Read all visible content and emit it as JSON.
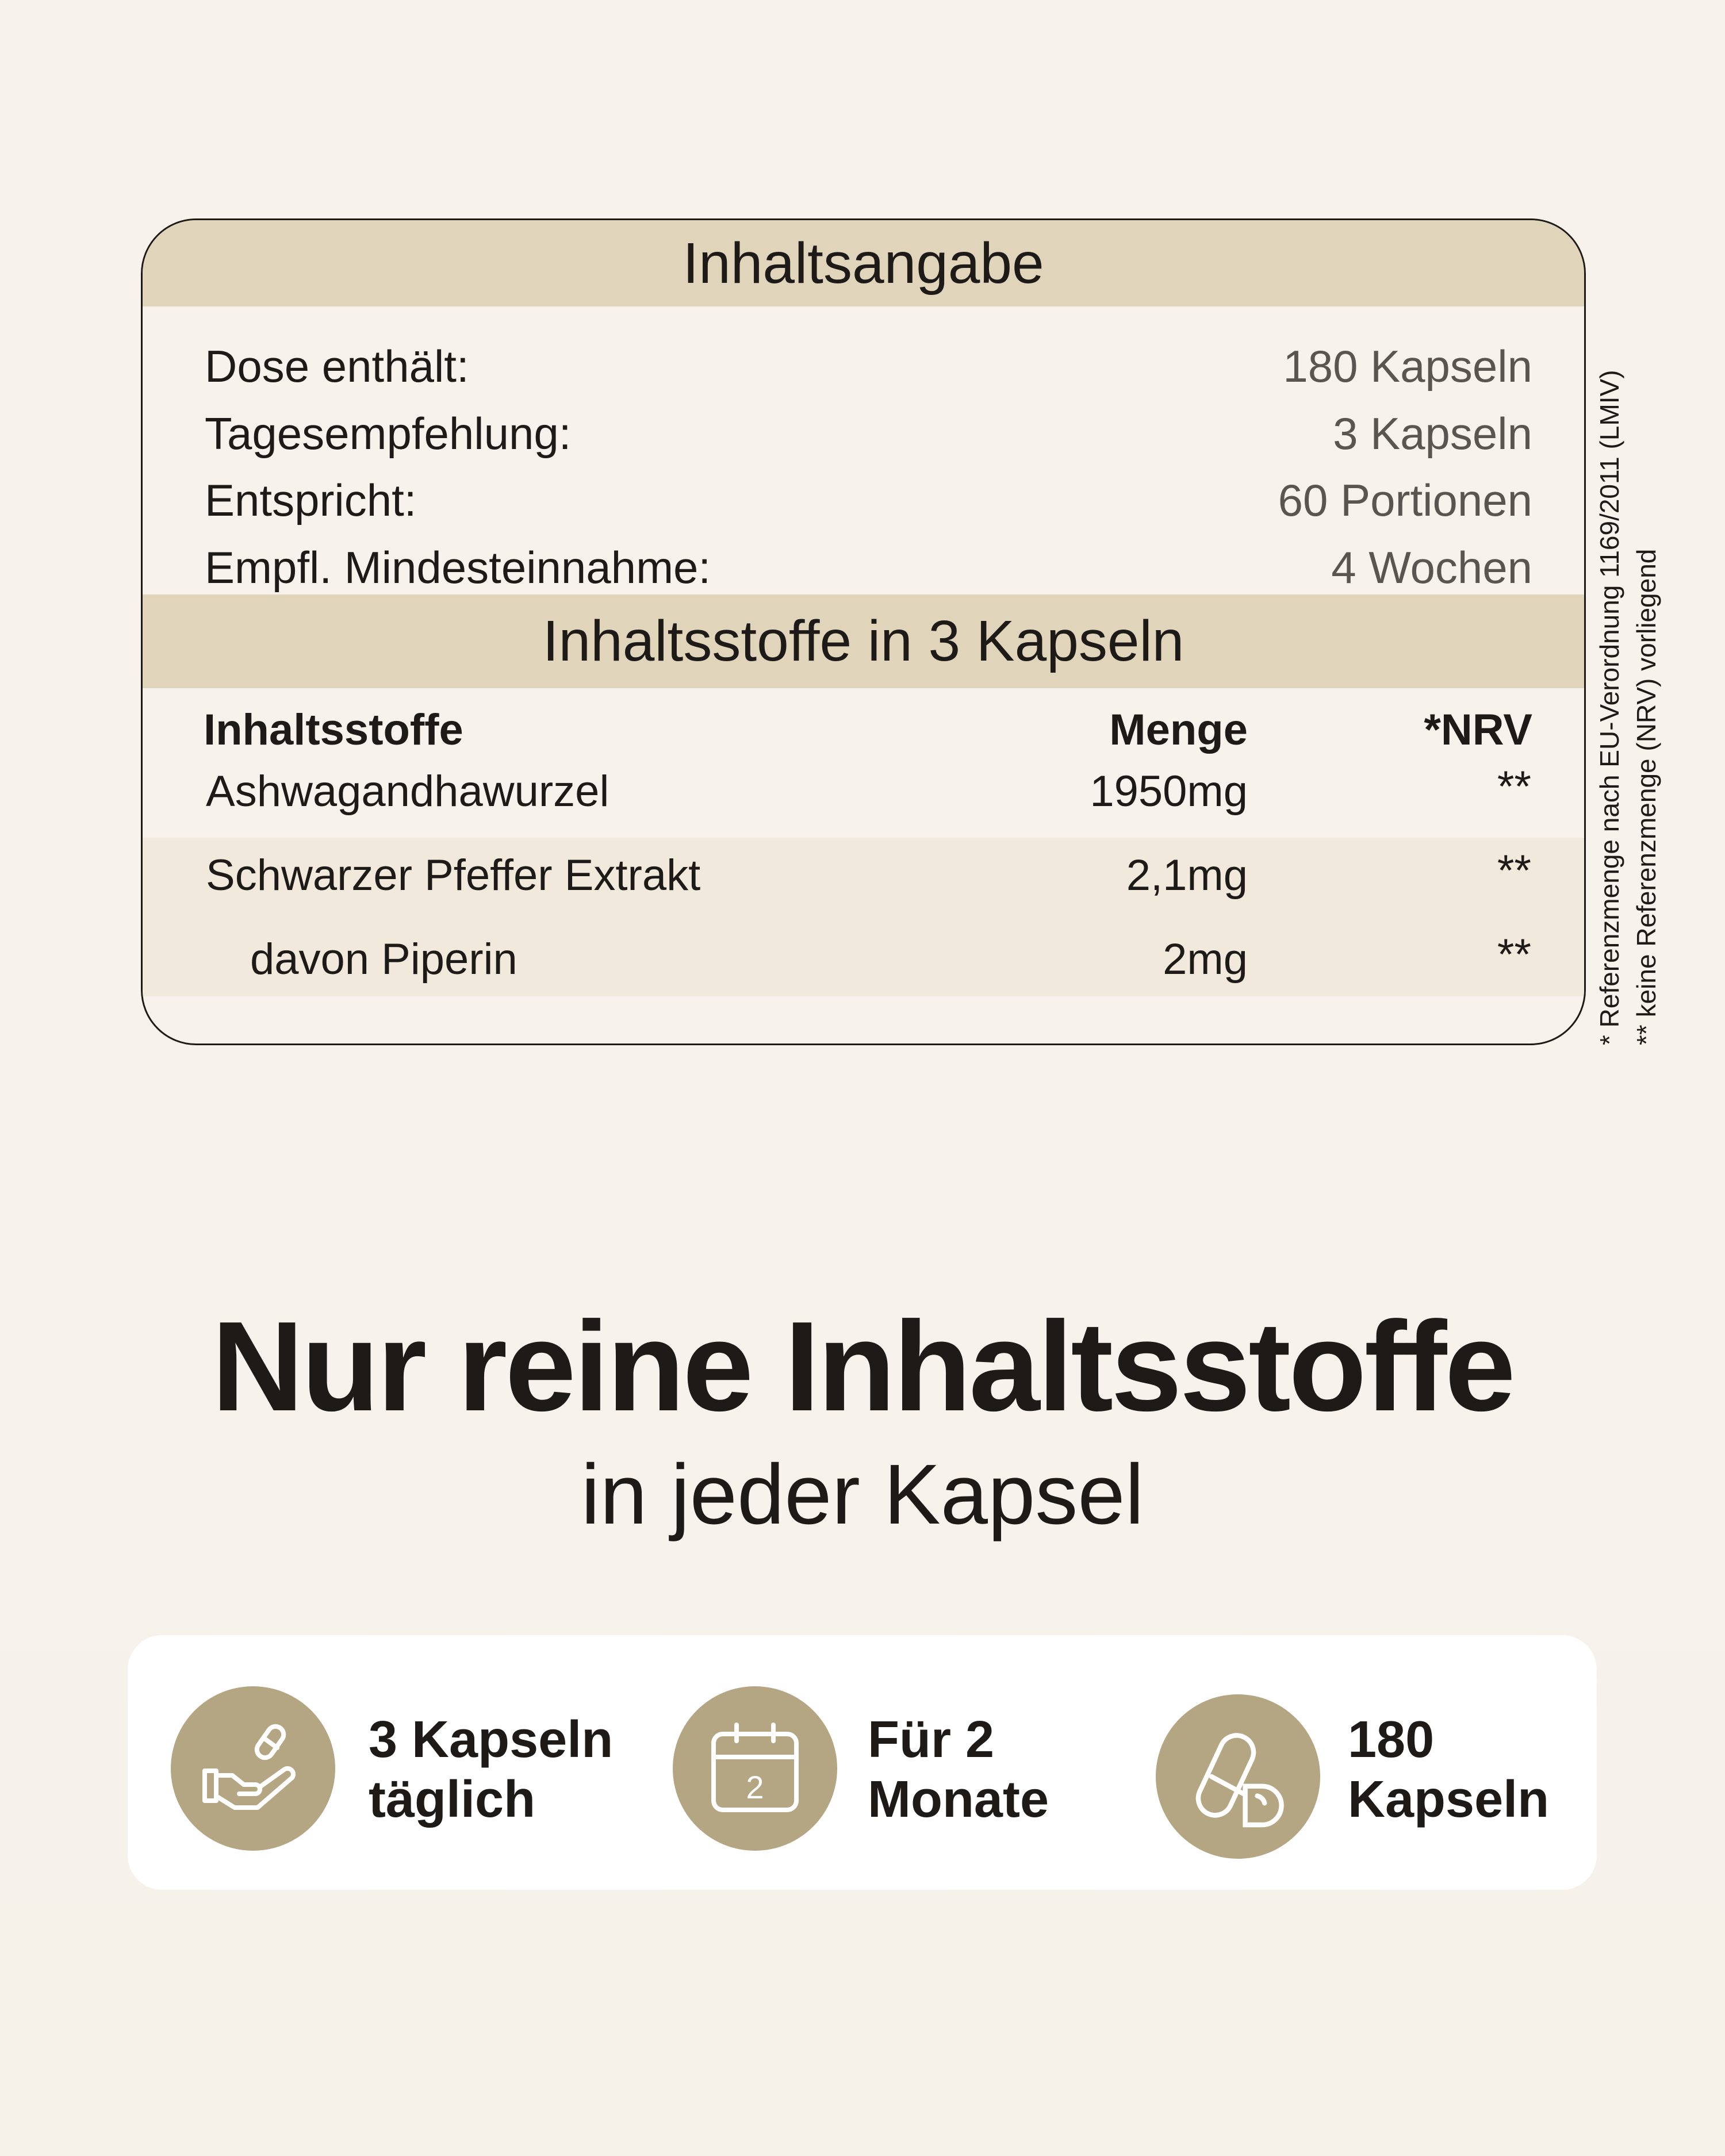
{
  "summary": {
    "title": "Inhaltsangabe",
    "rows": [
      {
        "label": "Dose enthält:",
        "value": "180 Kapseln"
      },
      {
        "label": "Tagesempfehlung:",
        "value": "3 Kapseln"
      },
      {
        "label": "Entspricht:",
        "value": "60 Portionen"
      },
      {
        "label": "Empfl. Mindesteinnahme:",
        "value": "4 Wochen"
      }
    ]
  },
  "ingredients": {
    "title": "Inhaltsstoffe in 3 Kapseln",
    "headers": [
      "Inhaltsstoffe",
      "Menge",
      "*NRV"
    ],
    "rows": [
      [
        "Ashwagandhawurzel",
        "1950mg",
        "**"
      ],
      [
        "Schwarzer Pfeffer Extrakt",
        "2,1mg",
        "**"
      ],
      [
        "davon Piperin",
        "2mg",
        "**"
      ]
    ]
  },
  "footnotes": [
    "* Referenzmenge nach EU-Verordnung 1169/2011 (LMIV)",
    "** keine Referenzmenge (NRV) vorliegend"
  ],
  "headline": "Nur reine Inhaltsstoffe",
  "subline": "in jeder Kapsel",
  "features": [
    {
      "icon": "hand-capsule-icon",
      "line1": "3 Kapseln",
      "line2": "täglich"
    },
    {
      "icon": "calendar-icon",
      "line1": "Für 2",
      "line2": "Monate",
      "calendar_number": "2"
    },
    {
      "icon": "capsules-icon",
      "line1": "180",
      "line2": "Kapseln"
    }
  ],
  "colors": {
    "band": "#e0d5bb",
    "shade": "#f0e9dc",
    "icon_circle": "#b5a683",
    "background": "#f7f3ec"
  }
}
